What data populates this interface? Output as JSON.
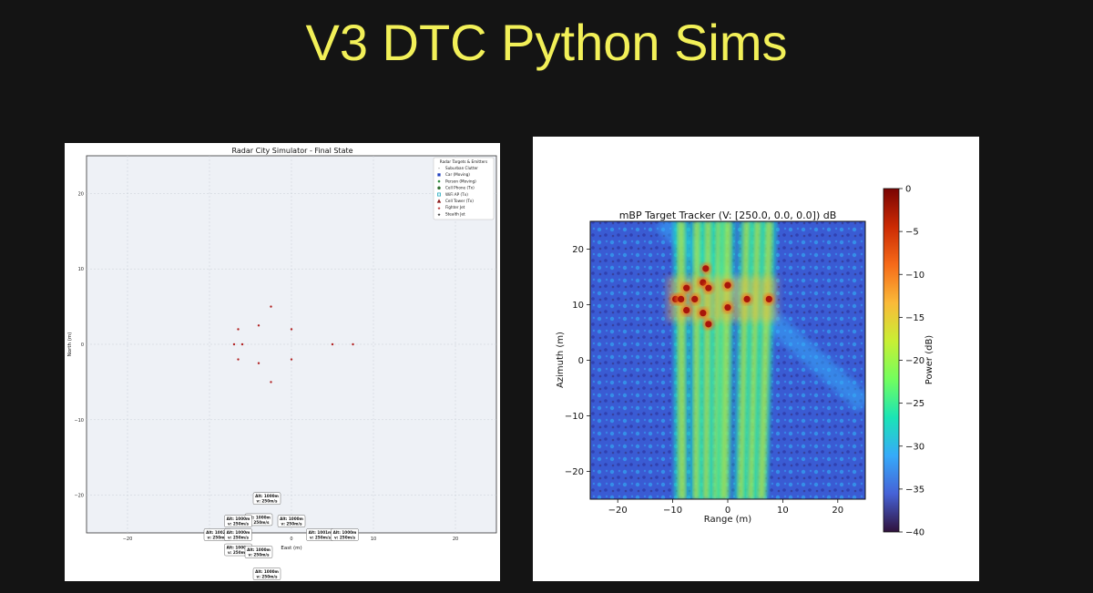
{
  "slide": {
    "title": "V3 DTC Python Sims"
  },
  "chart_data": [
    {
      "type": "scatter",
      "title": "Radar City Simulator - Final State",
      "xlabel": "East (m)",
      "ylabel": "North (m)",
      "xlim": [
        -25,
        25
      ],
      "ylim": [
        -25,
        25
      ],
      "xticks": [
        -20,
        -10,
        0,
        10,
        20
      ],
      "yticks": [
        -20,
        -10,
        0,
        10,
        20
      ],
      "xtick_labels": [
        "−20",
        "−10",
        "0",
        "10",
        "20"
      ],
      "ytick_labels": [
        "−20",
        "−10",
        "0",
        "10",
        "20"
      ],
      "grid": true,
      "legend_position": "top-right",
      "legend_title": "Radar Targets & Emitters",
      "legend": [
        {
          "label": "Suburban Clutter",
          "marker": "dot",
          "color": "#888888"
        },
        {
          "label": "Car (Moving)",
          "marker": "square",
          "color": "#1f3fbf"
        },
        {
          "label": "Person (Moving)",
          "marker": "dot",
          "color": "#2e8b3e"
        },
        {
          "label": "Cell Phone (Tx)",
          "marker": "pentagon",
          "color": "#2f6e2f"
        },
        {
          "label": "WiFi AP (Tx)",
          "marker": "square-outline",
          "color": "#17a3b8"
        },
        {
          "label": "Cell Tower (Tx)",
          "marker": "triangle",
          "color": "#8b1a1a"
        },
        {
          "label": "Fighter Jet",
          "marker": "star",
          "color": "#b22222"
        },
        {
          "label": "Stealth Jet",
          "marker": "star",
          "color": "#333333"
        }
      ],
      "points": [
        {
          "x": -2.5,
          "y": 5.0
        },
        {
          "x": -6.5,
          "y": 2.0
        },
        {
          "x": -4.0,
          "y": 2.5
        },
        {
          "x": 0,
          "y": 2.0
        },
        {
          "x": -7.0,
          "y": 0
        },
        {
          "x": -6.0,
          "y": 0
        },
        {
          "x": 5.0,
          "y": 0
        },
        {
          "x": 7.5,
          "y": 0
        },
        {
          "x": -6.5,
          "y": -2.0
        },
        {
          "x": -4.0,
          "y": -2.5
        },
        {
          "x": 0,
          "y": -2.0
        },
        {
          "x": -2.5,
          "y": -5.0
        }
      ],
      "annotations": [
        {
          "x": -3,
          "y": -20.5,
          "lines": [
            "Alt: 1000m",
            "v: 250m/s"
          ]
        },
        {
          "x": -4,
          "y": -23.3,
          "lines": [
            "Alt: 1000m",
            "v: 250m/s"
          ]
        },
        {
          "x": -6.5,
          "y": -23.5,
          "lines": [
            "Alt: 1000m",
            "v: 250m/s"
          ]
        },
        {
          "x": 0,
          "y": -23.5,
          "lines": [
            "Alt: 1000m",
            "v: 250m/s"
          ]
        },
        {
          "x": -9,
          "y": -25.3,
          "lines": [
            "Alt: 1002m",
            "v: 250m/s"
          ]
        },
        {
          "x": -6.5,
          "y": -25.3,
          "lines": [
            "Alt: 1000m",
            "v: 250m/s"
          ]
        },
        {
          "x": 3.5,
          "y": -25.3,
          "lines": [
            "Alt: 1001m",
            "v: 250m/s"
          ]
        },
        {
          "x": 6.5,
          "y": -25.3,
          "lines": [
            "Alt: 1000m",
            "v: 250m/s"
          ]
        },
        {
          "x": -6.5,
          "y": -27.3,
          "lines": [
            "Alt: 1000m",
            "v: 250m/s"
          ]
        },
        {
          "x": -4,
          "y": -27.6,
          "lines": [
            "Alt: 1000m",
            "v: 250m/s"
          ]
        },
        {
          "x": -3,
          "y": -30.5,
          "lines": [
            "Alt: 1000m",
            "v: 250m/s"
          ]
        }
      ]
    },
    {
      "type": "heatmap",
      "title": "mBP Target Tracker (V: [250.0, 0.0, 0.0]) dB",
      "xlabel": "Range (m)",
      "ylabel": "Azimuth (m)",
      "xlim": [
        -25,
        25
      ],
      "ylim": [
        -25,
        25
      ],
      "xticks": [
        -20,
        -10,
        0,
        10,
        20
      ],
      "yticks": [
        -20,
        -10,
        0,
        10,
        20
      ],
      "xtick_labels": [
        "−20",
        "−10",
        "0",
        "10",
        "20"
      ],
      "ytick_labels": [
        "−20",
        "−10",
        "0",
        "10",
        "20"
      ],
      "colorbar_label": "Power (dB)",
      "colorbar_range": [
        -40,
        0
      ],
      "colorbar_ticks": [
        0,
        -5,
        -10,
        -15,
        -20,
        -25,
        -30,
        -35,
        -40
      ],
      "colorbar_tick_labels": [
        "0",
        "−5",
        "−10",
        "−15",
        "−20",
        "−25",
        "−30",
        "−35",
        "−40"
      ],
      "colormap": [
        "#30123b",
        "#4662d7",
        "#36aaf9",
        "#1ae4b6",
        "#72fe5e",
        "#c8ef34",
        "#faba39",
        "#f66b19",
        "#cb2a04",
        "#7a0403"
      ],
      "peaks": [
        {
          "x": -9.5,
          "y": 11.0
        },
        {
          "x": -8.5,
          "y": 11.0
        },
        {
          "x": -7.5,
          "y": 13.0
        },
        {
          "x": -7.5,
          "y": 9.0
        },
        {
          "x": -6.0,
          "y": 11.0
        },
        {
          "x": -4.5,
          "y": 14.0
        },
        {
          "x": -4.0,
          "y": 16.5
        },
        {
          "x": -4.5,
          "y": 8.5
        },
        {
          "x": -3.5,
          "y": 6.5
        },
        {
          "x": -3.5,
          "y": 13.0
        },
        {
          "x": 0,
          "y": 13.5
        },
        {
          "x": 0,
          "y": 9.5
        },
        {
          "x": 3.5,
          "y": 11.0
        },
        {
          "x": 7.5,
          "y": 11.0
        }
      ],
      "beams": [
        -8.5,
        -5.5,
        -3.5,
        -1.5,
        0,
        3.5,
        5.5,
        7.5
      ]
    }
  ]
}
